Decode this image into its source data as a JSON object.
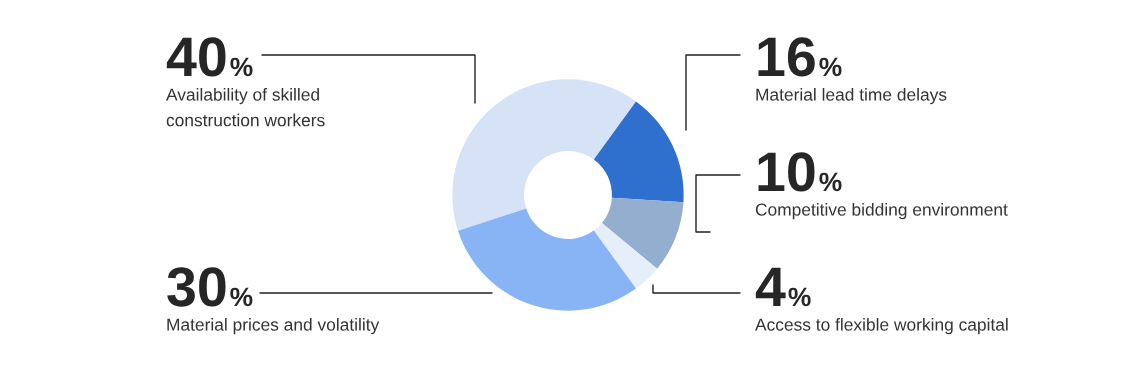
{
  "chart_data": {
    "type": "donut",
    "categories": [
      "Availability of skilled\nconstruction workers",
      "Material lead time delays",
      "Competitive bidding environment",
      "Access to flexible working capital",
      "Material prices and volatility"
    ],
    "values": [
      40,
      16,
      10,
      4,
      30
    ],
    "colors": [
      "#d6e2f5",
      "#2f6fce",
      "#94aed0",
      "#e6eefa",
      "#88b4f5"
    ],
    "value_labels": [
      "40%",
      "16%",
      "10%",
      "4%",
      "30%"
    ],
    "legend": false
  }
}
